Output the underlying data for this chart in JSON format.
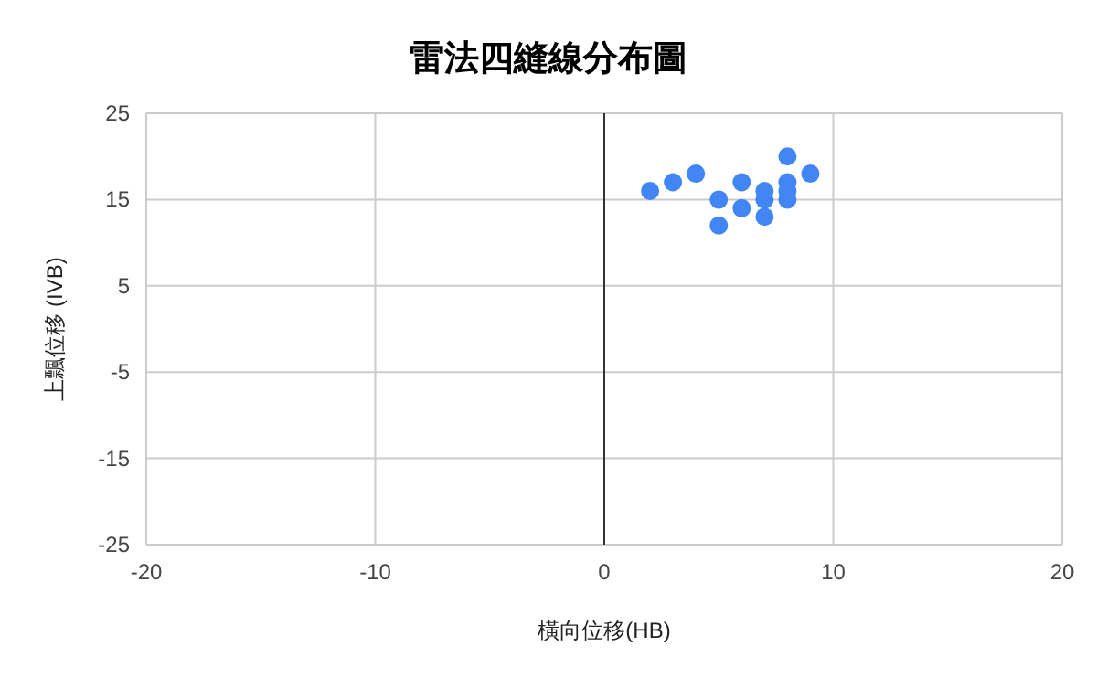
{
  "chart_data": {
    "type": "scatter",
    "title": "雷法四縫線分布圖",
    "xlabel": "橫向位移(HB)",
    "ylabel": "上飄位移 (IVB)",
    "x": [
      2,
      3,
      4,
      5,
      5,
      6,
      6,
      7,
      7,
      7,
      8,
      8,
      8,
      8,
      9
    ],
    "series": [
      {
        "color": "#4285f4",
        "values": [
          16,
          17,
          18,
          15,
          12,
          17,
          14,
          16,
          15,
          13,
          20,
          17,
          16,
          15,
          18
        ]
      }
    ],
    "xlim": [
      -20,
      20
    ],
    "xticks": [
      -20,
      -10,
      0,
      10,
      20
    ],
    "ylim": [
      -25,
      25
    ],
    "yticks": [
      -25,
      -15,
      -5,
      5,
      15,
      25
    ],
    "ref_lines": [
      {
        "axis": "x",
        "value": 0,
        "color": "#333333"
      }
    ],
    "grid": true,
    "marker": "circle"
  }
}
